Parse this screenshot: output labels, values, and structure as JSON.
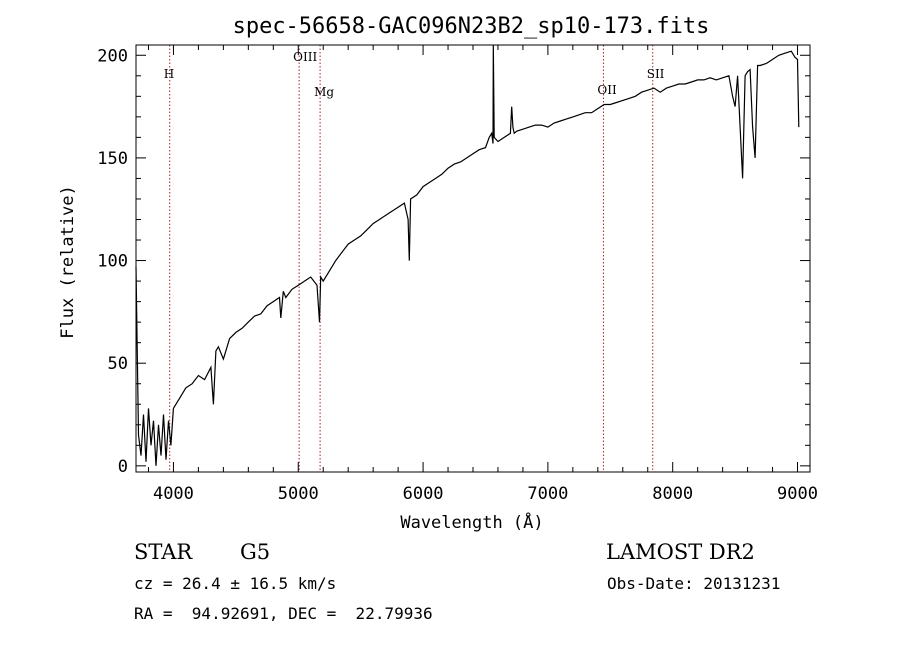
{
  "chart_data": {
    "type": "line",
    "title": "spec-56658-GAC096N23B2_sp10-173.fits",
    "xlabel": "Wavelength (Å)",
    "ylabel": "Flux (relative)",
    "xlim": [
      3700,
      9100
    ],
    "ylim": [
      -3,
      205
    ],
    "xticks": [
      4000,
      5000,
      6000,
      7000,
      8000,
      9000
    ],
    "yticks": [
      0,
      50,
      100,
      150,
      200
    ],
    "grid": false,
    "series": [
      {
        "x": [
          3700,
          3720,
          3740,
          3760,
          3780,
          3800,
          3820,
          3840,
          3860,
          3880,
          3900,
          3920,
          3940,
          3960,
          3980,
          4000,
          4050,
          4100,
          4150,
          4200,
          4250,
          4300,
          4320,
          4340,
          4360,
          4400,
          4450,
          4500,
          4550,
          4600,
          4650,
          4700,
          4750,
          4800,
          4850,
          4860,
          4880,
          4900,
          4950,
          5000,
          5050,
          5100,
          5150,
          5170,
          5180,
          5200,
          5250,
          5300,
          5350,
          5400,
          5450,
          5500,
          5550,
          5600,
          5650,
          5700,
          5750,
          5800,
          5850,
          5880,
          5890,
          5900,
          5950,
          6000,
          6050,
          6100,
          6150,
          6200,
          6250,
          6300,
          6350,
          6400,
          6450,
          6500,
          6530,
          6550,
          6560,
          6563,
          6570,
          6600,
          6650,
          6700,
          6710,
          6720,
          6730,
          6750,
          6800,
          6850,
          6900,
          6950,
          7000,
          7050,
          7100,
          7150,
          7200,
          7250,
          7300,
          7350,
          7400,
          7450,
          7500,
          7550,
          7600,
          7650,
          7700,
          7750,
          7800,
          7850,
          7900,
          7950,
          8000,
          8050,
          8100,
          8150,
          8200,
          8250,
          8300,
          8350,
          8400,
          8450,
          8480,
          8500,
          8520,
          8540,
          8560,
          8580,
          8600,
          8620,
          8640,
          8660,
          8680,
          8700,
          8750,
          8800,
          8850,
          8900,
          8950,
          8980,
          9000,
          9010
        ],
        "y": [
          97,
          15,
          5,
          25,
          2,
          28,
          10,
          22,
          0,
          20,
          5,
          25,
          3,
          22,
          10,
          28,
          33,
          38,
          40,
          44,
          42,
          48,
          30,
          56,
          58,
          52,
          62,
          65,
          67,
          70,
          73,
          74,
          78,
          80,
          82,
          72,
          85,
          82,
          86,
          88,
          90,
          92,
          88,
          70,
          92,
          90,
          95,
          100,
          104,
          108,
          110,
          112,
          115,
          118,
          120,
          122,
          124,
          126,
          128,
          120,
          100,
          130,
          132,
          136,
          138,
          140,
          142,
          145,
          147,
          148,
          150,
          152,
          154,
          155,
          160,
          162,
          157,
          205,
          160,
          158,
          160,
          162,
          175,
          165,
          162,
          163,
          164,
          165,
          166,
          166,
          165,
          167,
          168,
          169,
          170,
          171,
          172,
          172,
          174,
          176,
          176,
          177,
          178,
          179,
          180,
          182,
          183,
          184,
          182,
          184,
          185,
          186,
          186,
          187,
          188,
          188,
          189,
          188,
          189,
          190,
          180,
          175,
          190,
          165,
          140,
          190,
          192,
          193,
          165,
          150,
          195,
          195,
          196,
          198,
          200,
          201,
          202,
          199,
          198,
          165
        ]
      }
    ],
    "line_markers": [
      {
        "label": "H",
        "x": 3970
      },
      {
        "label": "OIII",
        "x": 5007
      },
      {
        "label": "Mg",
        "x": 5175
      },
      {
        "label": "OII",
        "x": 7445
      },
      {
        "label": "SII",
        "x": 7840
      }
    ]
  },
  "info": {
    "object_class": "STAR",
    "subclass": "G5",
    "survey": "LAMOST DR2",
    "redshift": "cz = 26.4 ± 16.5 km/s",
    "obs_date": "Obs-Date: 20131231",
    "coordinates": "RA =  94.92691, DEC =  22.79936"
  },
  "colors": {
    "marker_line": "#aa2222",
    "spectrum": "#000000"
  }
}
